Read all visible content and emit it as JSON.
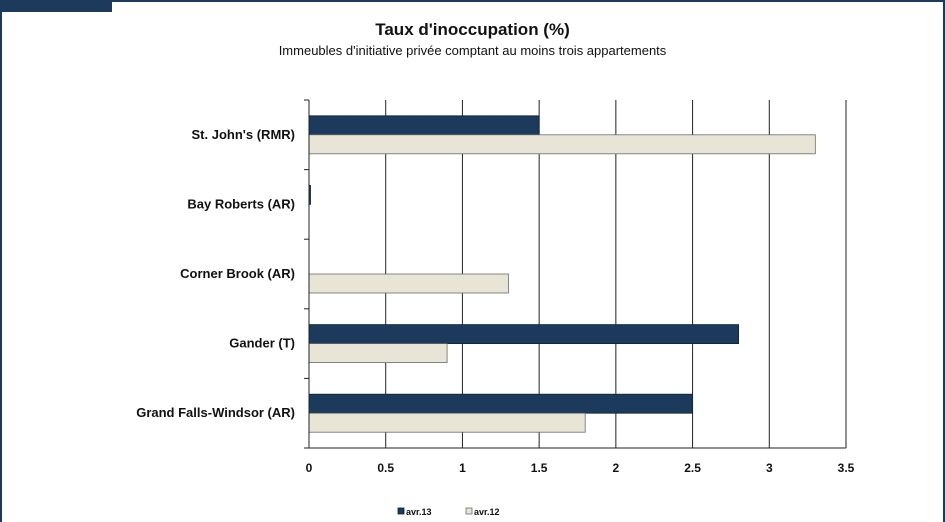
{
  "chart_data": {
    "type": "bar",
    "orientation": "horizontal",
    "title": "Taux d'inoccupation (%)",
    "subtitle": "Immeubles d'initiative privée comptant au moins trois appartements",
    "categories": [
      "St. John's (RMR)",
      "Bay Roberts (AR)",
      "Corner Brook (AR)",
      "Gander (T)",
      "Grand Falls-Windsor (AR)"
    ],
    "series": [
      {
        "name": "avr.13",
        "color": "#1b3a5c",
        "values": [
          1.5,
          0,
          null,
          2.8,
          2.5
        ]
      },
      {
        "name": "avr.12",
        "color": "#e8e4d6",
        "values": [
          3.3,
          null,
          1.3,
          0.9,
          1.8
        ]
      }
    ],
    "xlim": [
      0,
      3.5
    ],
    "xticks": [
      "0",
      "0.5",
      "1",
      "1.5",
      "2",
      "2.5",
      "3",
      "3.5"
    ],
    "grid": true,
    "legend_position": "bottom"
  }
}
